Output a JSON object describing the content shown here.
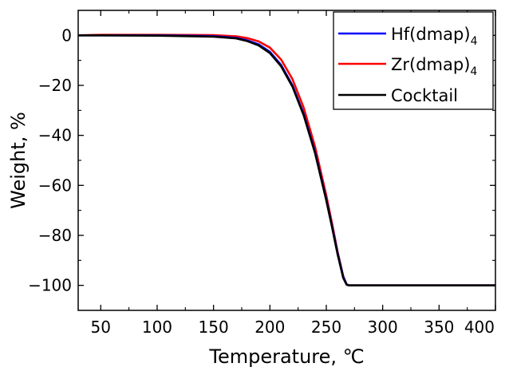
{
  "chart_data": {
    "type": "line",
    "xlabel": "Temperature, ℃",
    "ylabel": "Weight, %",
    "xlim": [
      30,
      400
    ],
    "ylim": [
      -110,
      10
    ],
    "xticks": [
      50,
      100,
      150,
      200,
      250,
      300,
      350,
      400
    ],
    "yticks": [
      0,
      -20,
      -40,
      -60,
      -80,
      -100
    ],
    "xtick_labels": [
      "50",
      "100",
      "150",
      "200",
      "250",
      "300",
      "350",
      "400"
    ],
    "ytick_labels": [
      "0",
      "−20",
      "−40",
      "−60",
      "−80",
      "−100"
    ],
    "grid": false,
    "legend_position": "top-right",
    "series": [
      {
        "name": "Hf(dmap)4",
        "label_main": "Hf(dmap)",
        "label_sub": "4",
        "color": "#0000ff",
        "x": [
          30,
          50,
          100,
          150,
          170,
          180,
          190,
          200,
          210,
          220,
          230,
          240,
          250,
          255,
          260,
          265,
          268,
          270,
          275,
          300,
          350,
          400
        ],
        "y": [
          0,
          0,
          0,
          -0.3,
          -1.0,
          -2.0,
          -3.6,
          -6.6,
          -11.9,
          -20.0,
          -31.5,
          -46.5,
          -65.5,
          -76.0,
          -87.0,
          -96.5,
          -99.6,
          -100,
          -100,
          -100,
          -100,
          -100
        ]
      },
      {
        "name": "Zr(dmap)4",
        "label_main": "Zr(dmap)",
        "label_sub": "4",
        "color": "#ff0000",
        "x": [
          30,
          50,
          100,
          150,
          170,
          180,
          190,
          200,
          210,
          220,
          230,
          240,
          250,
          255,
          260,
          265,
          268,
          270,
          275,
          300,
          350,
          400
        ],
        "y": [
          0,
          0.2,
          0.2,
          0.1,
          -0.4,
          -1.1,
          -2.4,
          -4.9,
          -9.7,
          -17.5,
          -29.0,
          -44.5,
          -64.0,
          -75.0,
          -86.5,
          -96.3,
          -99.6,
          -100,
          -100,
          -100,
          -100,
          -100
        ]
      },
      {
        "name": "Cocktail",
        "label_main": "Cocktail",
        "label_sub": "",
        "color": "#000000",
        "x": [
          30,
          50,
          100,
          150,
          170,
          180,
          190,
          200,
          210,
          220,
          230,
          240,
          250,
          255,
          260,
          265,
          268,
          270,
          275,
          300,
          350,
          400
        ],
        "y": [
          0,
          0,
          -0.1,
          -0.5,
          -1.2,
          -2.3,
          -4.0,
          -7.1,
          -12.4,
          -20.5,
          -32.0,
          -47.0,
          -66.0,
          -76.5,
          -87.5,
          -97.0,
          -99.7,
          -100,
          -100,
          -100,
          -100,
          -100
        ]
      }
    ]
  }
}
